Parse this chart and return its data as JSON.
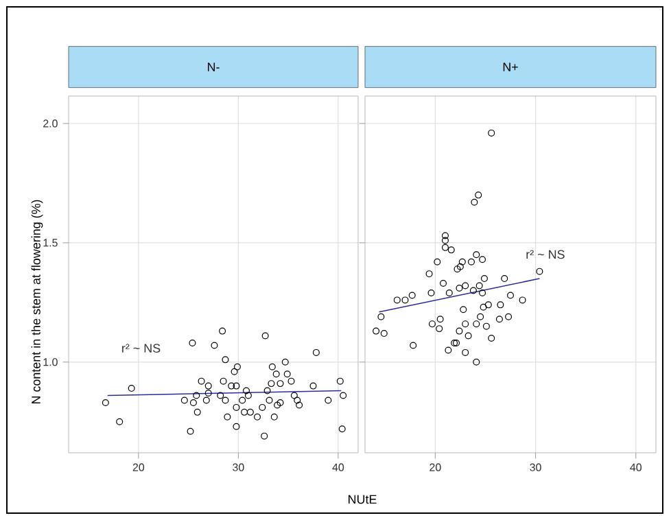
{
  "chart_data": [
    {
      "type": "scatter",
      "title": "N-",
      "ylabel": "N content in the stem at flowering (%)",
      "xlabel": "NUtE",
      "xlim": [
        13,
        42
      ],
      "ylim": [
        0.62,
        2.115
      ],
      "xticks": [
        20,
        30,
        40
      ],
      "yticks": [
        {
          "value": 1,
          "label": "1.0"
        },
        {
          "value": 1.5,
          "label": "1.5"
        },
        {
          "value": 2,
          "label": "2.0"
        }
      ],
      "grid": true,
      "annotations": [
        "r² ~ NS"
      ],
      "series": [
        {
          "marker": "circle",
          "color": "#000000",
          "x": [
            16.7,
            18.1,
            19.3,
            24.6,
            25.2,
            25.4,
            25.5,
            25.8,
            25.9,
            26.3,
            26.8,
            27.0,
            27.0,
            27.6,
            28.2,
            28.4,
            28.5,
            28.7,
            28.7,
            28.9,
            29.3,
            29.6,
            29.8,
            29.8,
            29.8,
            29.9,
            30.4,
            30.6,
            30.8,
            31.0,
            31.2,
            31.9,
            32.4,
            32.6,
            32.7,
            32.9,
            33.1,
            33.3,
            33.4,
            33.6,
            33.8,
            33.9,
            34.2,
            34.2,
            34.7,
            34.9,
            35.3,
            35.6,
            35.9,
            36.1,
            37.5,
            37.8,
            39.0,
            40.2,
            40.4,
            40.5
          ],
          "values": [
            0.83,
            0.75,
            0.89,
            0.84,
            0.71,
            1.08,
            0.83,
            0.86,
            0.79,
            0.92,
            0.84,
            0.9,
            0.87,
            1.07,
            0.86,
            1.13,
            0.92,
            1.01,
            0.84,
            0.77,
            0.9,
            0.96,
            0.9,
            0.81,
            0.73,
            0.98,
            0.84,
            0.79,
            0.88,
            0.86,
            0.79,
            0.77,
            0.81,
            0.69,
            1.11,
            0.88,
            0.84,
            0.91,
            0.98,
            0.77,
            0.95,
            0.82,
            0.83,
            0.91,
            1.0,
            0.95,
            0.92,
            0.86,
            0.84,
            0.82,
            0.9,
            1.04,
            0.84,
            0.92,
            0.72,
            0.86
          ]
        },
        {
          "type": "line",
          "color": "#2b2b9e",
          "x": [
            16.9,
            40.3
          ],
          "values": [
            0.86,
            0.88
          ]
        }
      ]
    },
    {
      "type": "scatter",
      "title": "N+",
      "xlim": [
        13,
        42
      ],
      "ylim": [
        0.62,
        2.115
      ],
      "xticks": [
        20,
        30,
        40
      ],
      "yticks": [
        {
          "value": 1,
          "label": null
        },
        {
          "value": 1.5,
          "label": null
        },
        {
          "value": 2,
          "label": null
        }
      ],
      "tick_labels": "x",
      "grid": true,
      "annotations": [
        "r² ~ NS"
      ],
      "series": [
        {
          "marker": "circle",
          "color": "#000000",
          "x": [
            14.1,
            14.6,
            14.9,
            16.2,
            17.0,
            17.7,
            17.8,
            19.4,
            19.6,
            19.7,
            20.2,
            20.4,
            20.5,
            20.8,
            21.0,
            21.0,
            21.0,
            21.3,
            21.4,
            21.6,
            21.9,
            22.1,
            22.2,
            22.4,
            22.4,
            22.5,
            22.7,
            22.8,
            23.0,
            23.0,
            23.0,
            23.3,
            23.6,
            23.8,
            23.9,
            24.1,
            24.1,
            24.3,
            24.1,
            24.4,
            24.5,
            24.7,
            24.7,
            24.8,
            24.9,
            25.1,
            25.3,
            25.6,
            25.6,
            26.4,
            26.5,
            26.9,
            27.3,
            27.5,
            28.7,
            30.4
          ],
          "values": [
            1.13,
            1.19,
            1.12,
            1.26,
            1.26,
            1.28,
            1.07,
            1.37,
            1.29,
            1.16,
            1.42,
            1.14,
            1.18,
            1.33,
            1.53,
            1.51,
            1.48,
            1.05,
            1.29,
            1.47,
            1.08,
            1.08,
            1.39,
            1.13,
            1.31,
            1.4,
            1.42,
            1.22,
            1.16,
            1.04,
            1.32,
            1.11,
            1.42,
            1.3,
            1.67,
            1.0,
            1.16,
            1.7,
            1.45,
            1.32,
            1.19,
            1.43,
            1.29,
            1.23,
            1.35,
            1.15,
            1.24,
            1.96,
            1.1,
            1.18,
            1.24,
            1.35,
            1.19,
            1.28,
            1.26,
            1.38
          ]
        },
        {
          "type": "line",
          "color": "#2b2b9e",
          "x": [
            14.4,
            30.4
          ],
          "values": [
            1.21,
            1.35
          ]
        }
      ]
    }
  ]
}
